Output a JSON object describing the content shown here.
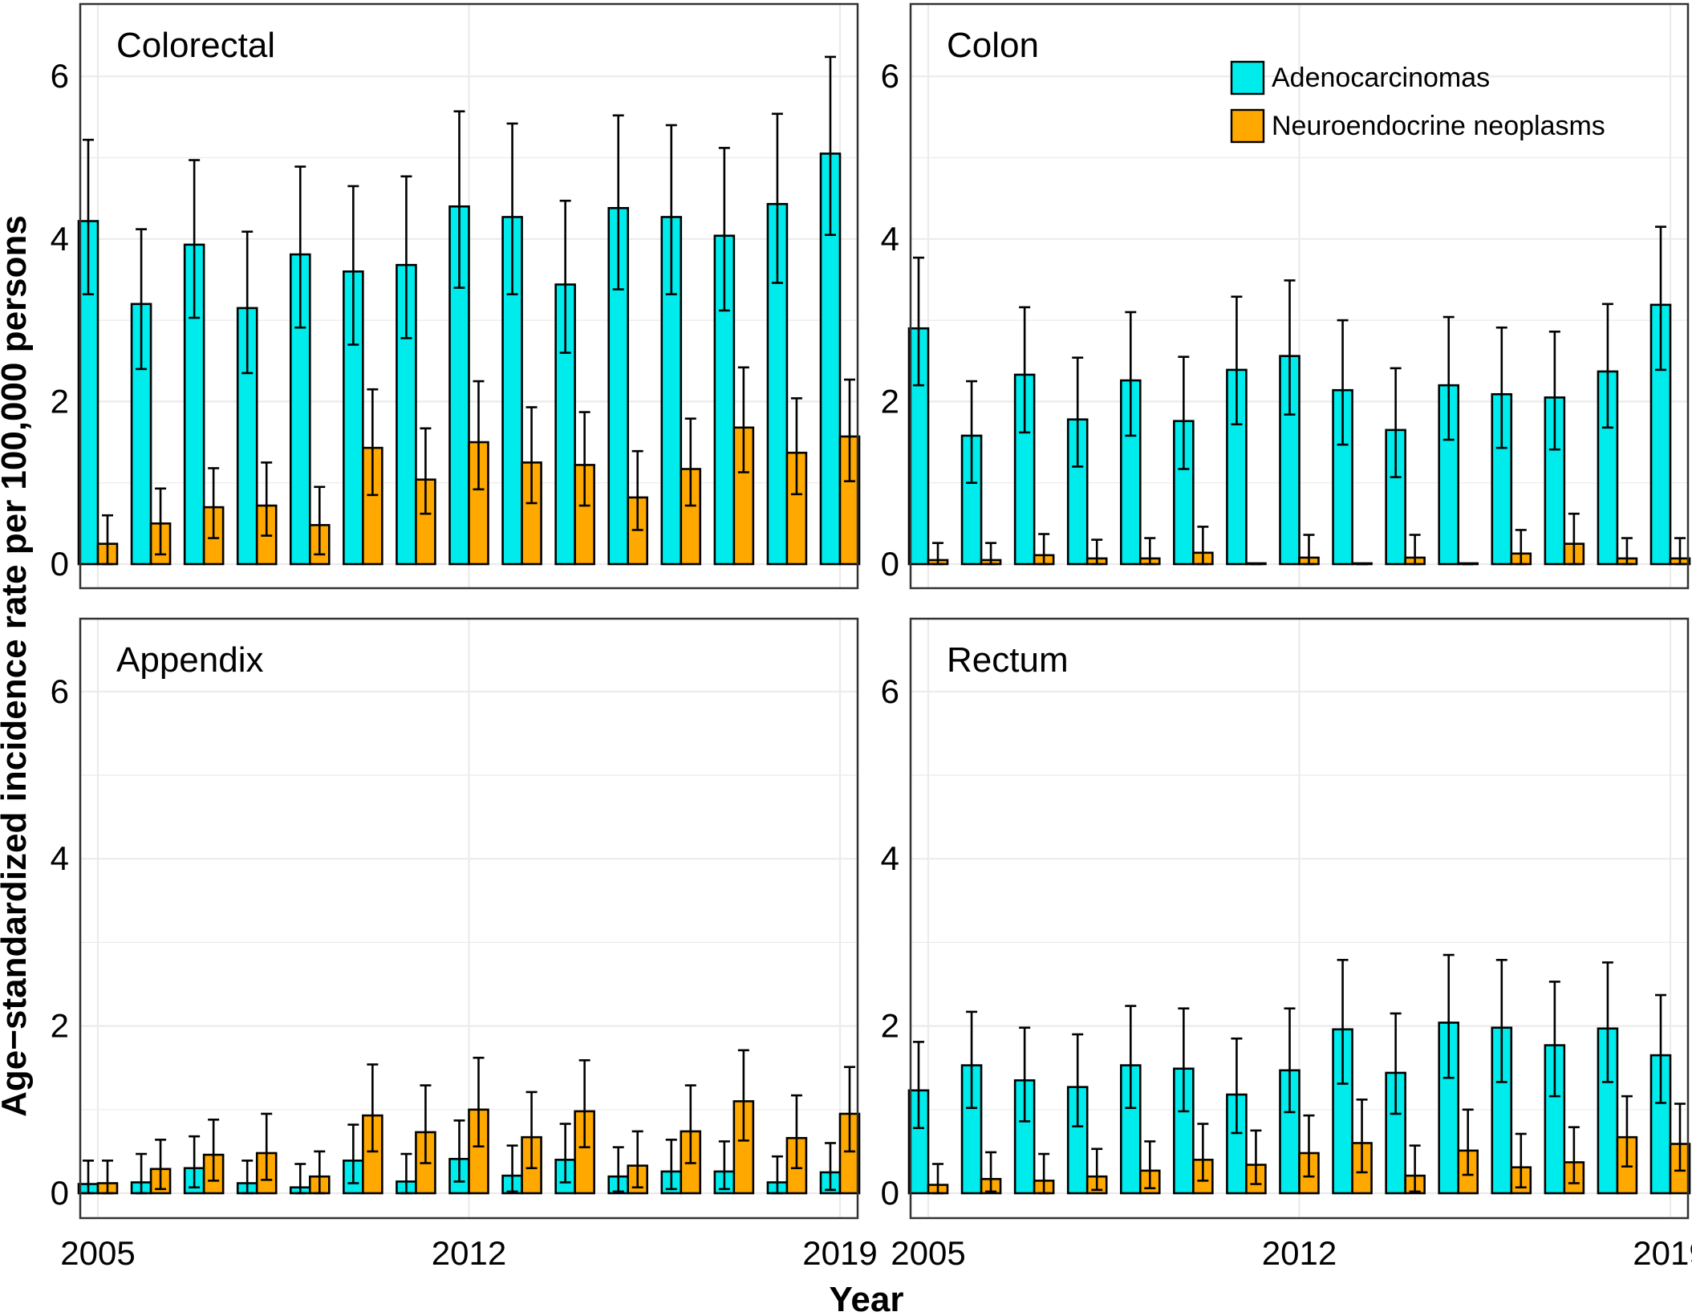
{
  "chart_data": {
    "type": "bar",
    "ylabel": "Age−standardized incidence rate per 100,000 persons",
    "xlabel": "Year",
    "ylim": [
      0,
      6.8
    ],
    "yticks": [
      0,
      2,
      4,
      6
    ],
    "x": [
      2005,
      2006,
      2007,
      2008,
      2009,
      2010,
      2011,
      2012,
      2013,
      2014,
      2015,
      2016,
      2017,
      2018,
      2019
    ],
    "xticks": [
      2005,
      2012,
      2019
    ],
    "xtick_labels": [
      "2005",
      "2012",
      "2019"
    ],
    "legend": {
      "position": "top-right of Colon panel",
      "entries": [
        {
          "name": "Adenocarcinomas",
          "color": "#00ECEC"
        },
        {
          "name": "Neuroendocrine neoplasms",
          "color": "#FFA800"
        }
      ]
    },
    "panels": [
      {
        "title": "Colorectal",
        "series": [
          {
            "name": "Adenocarcinomas",
            "values": [
              4.22,
              3.2,
              3.93,
              3.15,
              3.81,
              3.6,
              3.68,
              4.4,
              4.27,
              3.44,
              4.38,
              4.27,
              4.04,
              4.43,
              5.05
            ],
            "lower": [
              3.32,
              2.4,
              3.03,
              2.35,
              2.91,
              2.7,
              2.78,
              3.4,
              3.32,
              2.6,
              3.38,
              3.32,
              3.12,
              3.46,
              4.05
            ],
            "upper": [
              5.22,
              4.12,
              4.97,
              4.09,
              4.89,
              4.65,
              4.77,
              5.57,
              5.42,
              4.47,
              5.52,
              5.4,
              5.12,
              5.54,
              6.24
            ]
          },
          {
            "name": "Neuroendocrine neoplasms",
            "values": [
              0.25,
              0.5,
              0.7,
              0.72,
              0.48,
              1.43,
              1.04,
              1.5,
              1.25,
              1.22,
              0.82,
              1.17,
              1.68,
              1.37,
              1.57
            ],
            "lower": [
              0.0,
              0.12,
              0.32,
              0.35,
              0.12,
              0.85,
              0.62,
              0.92,
              0.75,
              0.72,
              0.42,
              0.72,
              1.13,
              0.86,
              1.02
            ],
            "upper": [
              0.6,
              0.93,
              1.18,
              1.25,
              0.95,
              2.15,
              1.67,
              2.25,
              1.93,
              1.87,
              1.39,
              1.79,
              2.42,
              2.04,
              2.27
            ]
          }
        ]
      },
      {
        "title": "Colon",
        "series": [
          {
            "name": "Adenocarcinomas",
            "values": [
              2.9,
              1.58,
              2.33,
              1.78,
              2.26,
              1.76,
              2.39,
              2.56,
              2.14,
              1.65,
              2.2,
              2.09,
              2.05,
              2.37,
              3.19
            ],
            "lower": [
              2.2,
              1.0,
              1.62,
              1.2,
              1.58,
              1.17,
              1.72,
              1.84,
              1.47,
              1.07,
              1.53,
              1.43,
              1.41,
              1.68,
              2.39
            ],
            "upper": [
              3.77,
              2.25,
              3.16,
              2.54,
              3.1,
              2.55,
              3.29,
              3.49,
              3.0,
              2.41,
              3.04,
              2.91,
              2.86,
              3.2,
              4.15
            ]
          },
          {
            "name": "Neuroendocrine neoplasms",
            "values": [
              0.05,
              0.05,
              0.11,
              0.07,
              0.07,
              0.14,
              0.01,
              0.08,
              0.01,
              0.08,
              0.01,
              0.13,
              0.25,
              0.07,
              0.07
            ],
            "lower": [
              0.0,
              0.0,
              0.0,
              0.0,
              0.0,
              0.0,
              0.0,
              0.0,
              0.0,
              0.0,
              0.0,
              0.0,
              0.0,
              0.0,
              0.0
            ],
            "upper": [
              0.26,
              0.26,
              0.37,
              0.3,
              0.32,
              0.46,
              0.0,
              0.36,
              0.0,
              0.36,
              0.0,
              0.42,
              0.62,
              0.32,
              0.32
            ]
          }
        ]
      },
      {
        "title": "Appendix",
        "series": [
          {
            "name": "Adenocarcinomas",
            "values": [
              0.11,
              0.13,
              0.3,
              0.12,
              0.07,
              0.39,
              0.14,
              0.41,
              0.21,
              0.4,
              0.2,
              0.26,
              0.26,
              0.13,
              0.25
            ],
            "lower": [
              0.0,
              0.0,
              0.07,
              0.0,
              0.0,
              0.12,
              0.0,
              0.14,
              0.02,
              0.13,
              0.02,
              0.05,
              0.05,
              0.0,
              0.04
            ],
            "upper": [
              0.39,
              0.47,
              0.68,
              0.39,
              0.35,
              0.82,
              0.47,
              0.87,
              0.57,
              0.83,
              0.55,
              0.64,
              0.62,
              0.44,
              0.6
            ]
          },
          {
            "name": "Neuroendocrine neoplasms",
            "values": [
              0.12,
              0.29,
              0.46,
              0.48,
              0.2,
              0.93,
              0.73,
              1.0,
              0.67,
              0.98,
              0.33,
              0.74,
              1.1,
              0.66,
              0.95
            ],
            "lower": [
              0.0,
              0.05,
              0.15,
              0.16,
              0.0,
              0.5,
              0.36,
              0.56,
              0.3,
              0.55,
              0.07,
              0.36,
              0.63,
              0.3,
              0.5
            ],
            "upper": [
              0.39,
              0.64,
              0.88,
              0.95,
              0.5,
              1.54,
              1.29,
              1.62,
              1.21,
              1.59,
              0.74,
              1.29,
              1.71,
              1.17,
              1.51
            ]
          }
        ]
      },
      {
        "title": "Rectum",
        "series": [
          {
            "name": "Adenocarcinomas",
            "values": [
              1.23,
              1.53,
              1.35,
              1.27,
              1.53,
              1.49,
              1.18,
              1.47,
              1.96,
              1.44,
              2.04,
              1.98,
              1.77,
              1.97,
              1.65
            ],
            "lower": [
              0.78,
              1.02,
              0.86,
              0.8,
              1.02,
              0.98,
              0.72,
              0.97,
              1.31,
              0.95,
              1.38,
              1.33,
              1.16,
              1.33,
              1.08
            ],
            "upper": [
              1.81,
              2.17,
              1.98,
              1.9,
              2.24,
              2.21,
              1.85,
              2.21,
              2.79,
              2.15,
              2.85,
              2.79,
              2.53,
              2.76,
              2.37
            ]
          },
          {
            "name": "Neuroendocrine neoplasms",
            "values": [
              0.1,
              0.17,
              0.15,
              0.2,
              0.27,
              0.4,
              0.34,
              0.48,
              0.6,
              0.21,
              0.51,
              0.31,
              0.37,
              0.67,
              0.59
            ],
            "lower": [
              0.0,
              0.02,
              0.0,
              0.04,
              0.06,
              0.15,
              0.11,
              0.2,
              0.25,
              0.02,
              0.22,
              0.07,
              0.12,
              0.32,
              0.27
            ],
            "upper": [
              0.35,
              0.49,
              0.47,
              0.53,
              0.62,
              0.83,
              0.75,
              0.93,
              1.12,
              0.57,
              1.0,
              0.71,
              0.79,
              1.16,
              1.07
            ]
          }
        ]
      }
    ]
  }
}
